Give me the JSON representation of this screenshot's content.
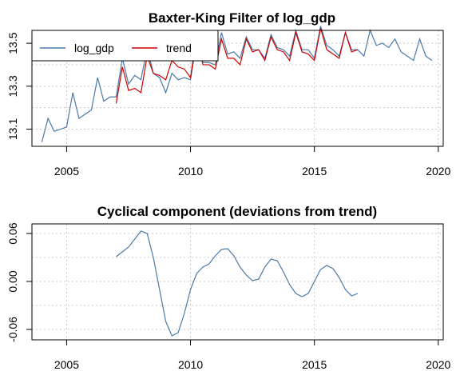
{
  "chart_data": [
    {
      "type": "line",
      "title": "Baxter-King Filter of log_gdp",
      "xlabel": "",
      "ylabel": "",
      "xlim": [
        2003.6,
        2020.2
      ],
      "ylim": [
        13.02,
        13.56
      ],
      "xticks": [
        2005,
        2010,
        2015,
        2020
      ],
      "yticks": [
        13.1,
        13.3,
        13.5
      ],
      "grid": true,
      "legend": {
        "position": "top-left",
        "entries": [
          "log_gdp",
          "trend"
        ]
      },
      "series": [
        {
          "name": "log_gdp",
          "color": "#4a7aa8",
          "x": [
            2004.0,
            2004.25,
            2004.5,
            2004.75,
            2005.0,
            2005.25,
            2005.5,
            2005.75,
            2006.0,
            2006.25,
            2006.5,
            2006.75,
            2007.0,
            2007.25,
            2007.5,
            2007.75,
            2008.0,
            2008.25,
            2008.5,
            2008.75,
            2009.0,
            2009.25,
            2009.5,
            2009.75,
            2010.0,
            2010.25,
            2010.5,
            2010.75,
            2011.0,
            2011.25,
            2011.5,
            2011.75,
            2012.0,
            2012.25,
            2012.5,
            2012.75,
            2013.0,
            2013.25,
            2013.5,
            2013.75,
            2014.0,
            2014.25,
            2014.5,
            2014.75,
            2015.0,
            2015.25,
            2015.5,
            2015.75,
            2016.0,
            2016.25,
            2016.5,
            2016.75,
            2017.0,
            2017.25,
            2017.5,
            2017.75,
            2018.0,
            2018.25,
            2018.5,
            2018.75,
            2019.0,
            2019.25,
            2019.5,
            2019.75
          ],
          "values": [
            13.04,
            13.15,
            13.09,
            13.1,
            13.11,
            13.27,
            13.15,
            13.17,
            13.19,
            13.34,
            13.23,
            13.25,
            13.25,
            13.43,
            13.31,
            13.35,
            13.33,
            13.48,
            13.36,
            13.34,
            13.27,
            13.36,
            13.33,
            13.34,
            13.33,
            13.51,
            13.41,
            13.41,
            13.4,
            13.55,
            13.45,
            13.46,
            13.43,
            13.53,
            13.47,
            13.47,
            13.43,
            13.54,
            13.48,
            13.47,
            13.44,
            13.56,
            13.47,
            13.47,
            13.43,
            13.58,
            13.49,
            13.47,
            13.44,
            13.55,
            13.47,
            13.47,
            13.44,
            13.56,
            13.49,
            13.5,
            13.48,
            13.52,
            13.46,
            13.44,
            13.42,
            13.52,
            13.44,
            13.42
          ]
        },
        {
          "name": "trend",
          "color": "#cc0000",
          "x": [
            2007.0,
            2007.25,
            2007.5,
            2007.75,
            2008.0,
            2008.25,
            2008.5,
            2008.75,
            2009.0,
            2009.25,
            2009.5,
            2009.75,
            2010.0,
            2010.25,
            2010.5,
            2010.75,
            2011.0,
            2011.25,
            2011.5,
            2011.75,
            2012.0,
            2012.25,
            2012.5,
            2012.75,
            2013.0,
            2013.25,
            2013.5,
            2013.75,
            2014.0,
            2014.25,
            2014.5,
            2014.75,
            2015.0,
            2015.25,
            2015.5,
            2015.75,
            2016.0,
            2016.25,
            2016.5,
            2016.75
          ],
          "values": [
            13.22,
            13.39,
            13.28,
            13.29,
            13.27,
            13.44,
            13.36,
            13.35,
            13.33,
            13.42,
            13.39,
            13.38,
            13.34,
            13.54,
            13.4,
            13.4,
            13.38,
            13.52,
            13.43,
            13.43,
            13.4,
            13.52,
            13.46,
            13.47,
            13.42,
            13.53,
            13.47,
            13.46,
            13.42,
            13.55,
            13.46,
            13.45,
            13.42,
            13.57,
            13.47,
            13.45,
            13.43,
            13.55,
            13.46,
            13.47
          ]
        }
      ]
    },
    {
      "type": "line",
      "title": "Cyclical component (deviations from trend)",
      "xlabel": "",
      "ylabel": "",
      "xlim": [
        2003.6,
        2020.2
      ],
      "ylim": [
        -0.073,
        0.072
      ],
      "xticks": [
        2005,
        2010,
        2015,
        2020
      ],
      "yticks": [
        -0.06,
        0.0,
        0.06
      ],
      "yticklabels": [
        "-0.06",
        "0.00",
        "0.06"
      ],
      "grid": true,
      "series": [
        {
          "color": "#4a7aa8",
          "x": [
            2007.0,
            2007.25,
            2007.5,
            2007.75,
            2008.0,
            2008.25,
            2008.5,
            2008.75,
            2009.0,
            2009.25,
            2009.5,
            2009.75,
            2010.0,
            2010.25,
            2010.5,
            2010.75,
            2011.0,
            2011.25,
            2011.5,
            2011.75,
            2012.0,
            2012.25,
            2012.5,
            2012.75,
            2013.0,
            2013.25,
            2013.5,
            2013.75,
            2014.0,
            2014.25,
            2014.5,
            2014.75,
            2015.0,
            2015.25,
            2015.5,
            2015.75,
            2016.0,
            2016.25,
            2016.5,
            2016.75
          ],
          "values": [
            0.031,
            0.037,
            0.043,
            0.053,
            0.063,
            0.06,
            0.03,
            -0.01,
            -0.05,
            -0.068,
            -0.064,
            -0.04,
            -0.01,
            0.01,
            0.018,
            0.022,
            0.032,
            0.04,
            0.041,
            0.032,
            0.018,
            0.008,
            0.001,
            0.003,
            0.018,
            0.028,
            0.026,
            0.012,
            -0.004,
            -0.015,
            -0.019,
            -0.015,
            0.0,
            0.015,
            0.02,
            0.016,
            0.005,
            -0.01,
            -0.018,
            -0.015
          ]
        }
      ]
    }
  ]
}
